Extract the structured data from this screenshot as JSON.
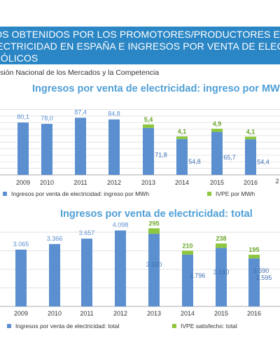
{
  "banner": {
    "line1": "DIOS OBTENIDOS POR LOS PROMOTORES/PRODUCTORES EN EL",
    "line2": "ELECTRICIDAD EN ESPAÑA E INGRESOS POR VENTA DE ELECTRICI",
    "line3": "S EÓLICOS"
  },
  "source": "nisión Nacional de los Mercados y la Competencia",
  "colors": {
    "primary": "#5b8fd0",
    "secondary": "#8dc63f",
    "title": "#4f9fd6",
    "banner": "#2b86c5"
  },
  "chart_data": [
    {
      "type": "bar",
      "stacked": true,
      "title": "Ingresos por venta de electricidad: ingreso por MWh",
      "categories": [
        "2009",
        "2010",
        "2011",
        "2012",
        "2013",
        "2014",
        "2015",
        "2016"
      ],
      "series": [
        {
          "name": "Ingresos por venta de electricidad: ingreso por MWh",
          "values": [
            80.1,
            78.0,
            87.4,
            84.8,
            71.8,
            54.8,
            65.7,
            54.4
          ],
          "labels": [
            "80,1",
            "78,0",
            "87,4",
            "84,8",
            "71,8",
            "54,8",
            "65,7",
            "54,4"
          ]
        },
        {
          "name": "IVPE por MWh",
          "values": [
            null,
            null,
            null,
            null,
            5.4,
            4.1,
            4.9,
            4.1
          ],
          "labels": [
            "",
            "",
            "",
            "",
            "5,4",
            "4,1",
            "4,9",
            "4,1"
          ]
        }
      ],
      "cut_label": "2",
      "ylim": [
        0,
        100
      ]
    },
    {
      "type": "bar",
      "stacked": true,
      "title": "Ingresos por venta de electricidad: total",
      "categories": [
        "2009",
        "2010",
        "2011",
        "2012",
        "2013",
        "2014",
        "2015",
        "2016"
      ],
      "series": [
        {
          "name": "Ingresos por venta de electricidad: total",
          "values": [
            3065,
            3366,
            3657,
            4098,
            3920,
            2796,
            3160,
            2595
          ],
          "labels": [
            "3.065",
            "3.366",
            "3.657",
            "4.098",
            "3.920",
            "2.796",
            "3.160",
            "2.595"
          ]
        },
        {
          "name": "IVPE satisfecho: total",
          "values": [
            null,
            null,
            null,
            null,
            295,
            210,
            238,
            195
          ],
          "labels": [
            "",
            "",
            "",
            "",
            "295",
            "210",
            "238",
            "195"
          ]
        }
      ],
      "cut_label": "3.590",
      "ylim": [
        0,
        5000
      ]
    }
  ]
}
